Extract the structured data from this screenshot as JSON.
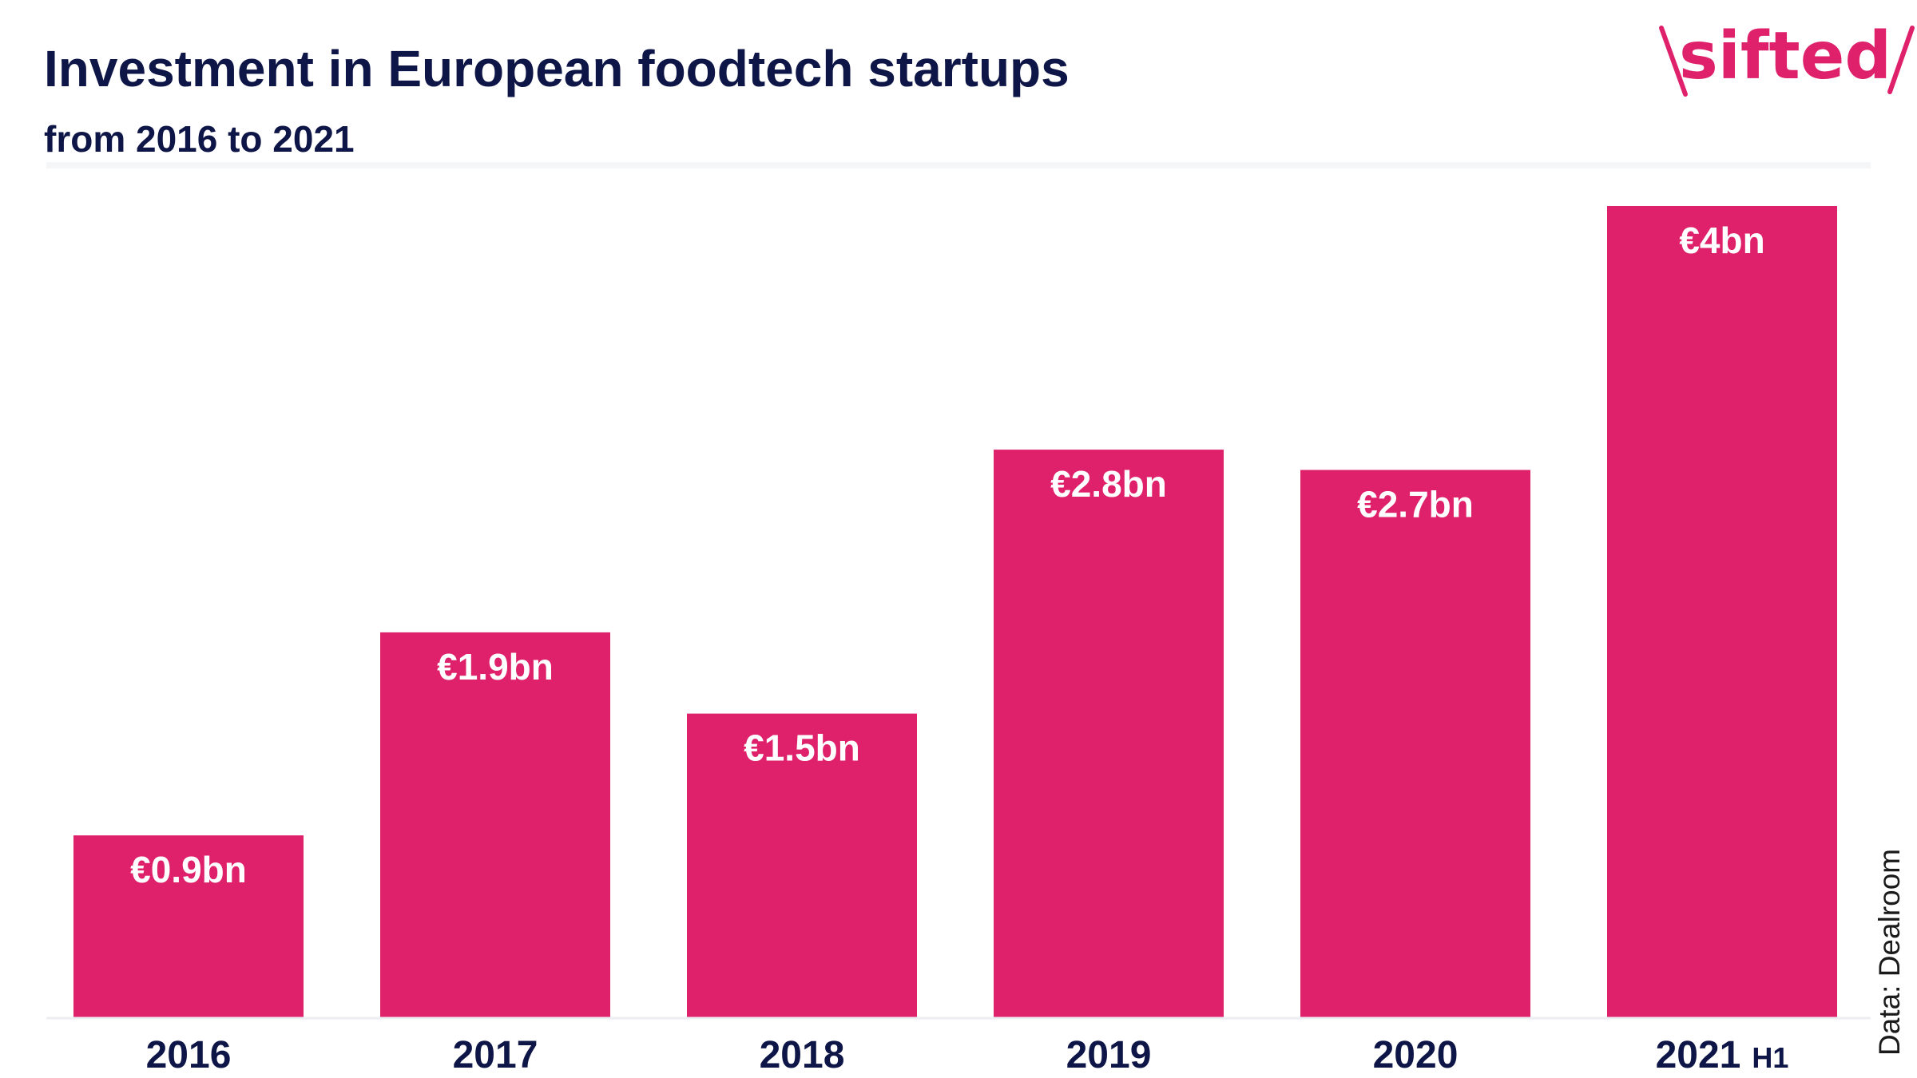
{
  "brand": {
    "logo_text": "sifted"
  },
  "colors": {
    "bar": "#DF216B",
    "title": "#0E1547",
    "axis_text": "#0E1547",
    "value_label": "#FFFFFF",
    "logo": "#DF216B",
    "axis_line": "#EDEEF2",
    "source_text": "#1A1A1A"
  },
  "chart_data": {
    "type": "bar",
    "title": "Investment in European foodtech startups",
    "subtitle": "from 2016 to 2021",
    "source": "Data: Dealroom",
    "xlabel": "",
    "ylabel": "",
    "categories": [
      {
        "main": "2016",
        "suffix": ""
      },
      {
        "main": "2017",
        "suffix": ""
      },
      {
        "main": "2018",
        "suffix": ""
      },
      {
        "main": "2019",
        "suffix": ""
      },
      {
        "main": "2020",
        "suffix": ""
      },
      {
        "main": "2021",
        "suffix": "H1"
      }
    ],
    "values": [
      0.9,
      1.9,
      1.5,
      2.8,
      2.7,
      4.0
    ],
    "value_labels": [
      "€0.9bn",
      "€1.9bn",
      "€1.5bn",
      "€2.8bn",
      "€2.7bn",
      "€4bn"
    ],
    "unit": "€bn",
    "ylim": [
      0,
      4.0
    ],
    "grid": false,
    "legend": "none"
  }
}
